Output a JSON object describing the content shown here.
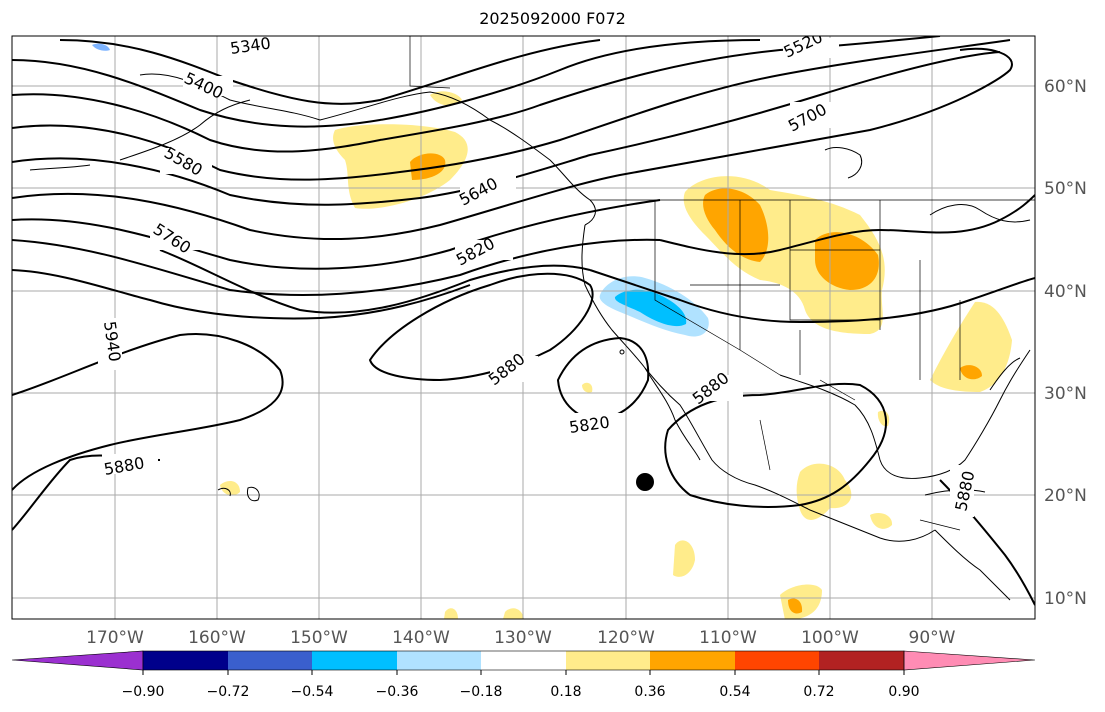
{
  "title": "2025092000 F072",
  "lat_labels": [
    "60°N",
    "50°N",
    "40°N",
    "30°N",
    "20°N",
    "10°N"
  ],
  "lon_labels": [
    "170°W",
    "160°W",
    "150°W",
    "140°W",
    "130°W",
    "120°W",
    "110°W",
    "100°W",
    "90°W"
  ],
  "contour_labels": {
    "c5340": "5340",
    "c5400": "5400",
    "c5520": "5520",
    "c5580": "5580",
    "c5640": "5640",
    "c5700": "5700",
    "c5760": "5760",
    "c5820a": "5820",
    "c5820b": "5820",
    "c5880a": "5880",
    "c5880b": "5880",
    "c5880c": "5880",
    "c5880d": "5880",
    "c5940": "5940"
  },
  "colorbar": {
    "ticks": [
      "−0.90",
      "−0.72",
      "−0.54",
      "−0.36",
      "−0.18",
      "0.18",
      "0.36",
      "0.54",
      "0.72",
      "0.90"
    ],
    "colors": [
      "#9b30d0",
      "#00008b",
      "#3a5fcd",
      "#00bfff",
      "#b0e2ff",
      "#ffffff",
      "#ffec8b",
      "#ffa500",
      "#ff4500",
      "#b22222",
      "#ff8cb4"
    ]
  },
  "colors": {
    "pos1": "#ffec8b",
    "pos2": "#ffa500",
    "neg1": "#b0e2ff",
    "neg2": "#00bfff",
    "contour": "#000000",
    "grid": "#aaaaaa"
  }
}
